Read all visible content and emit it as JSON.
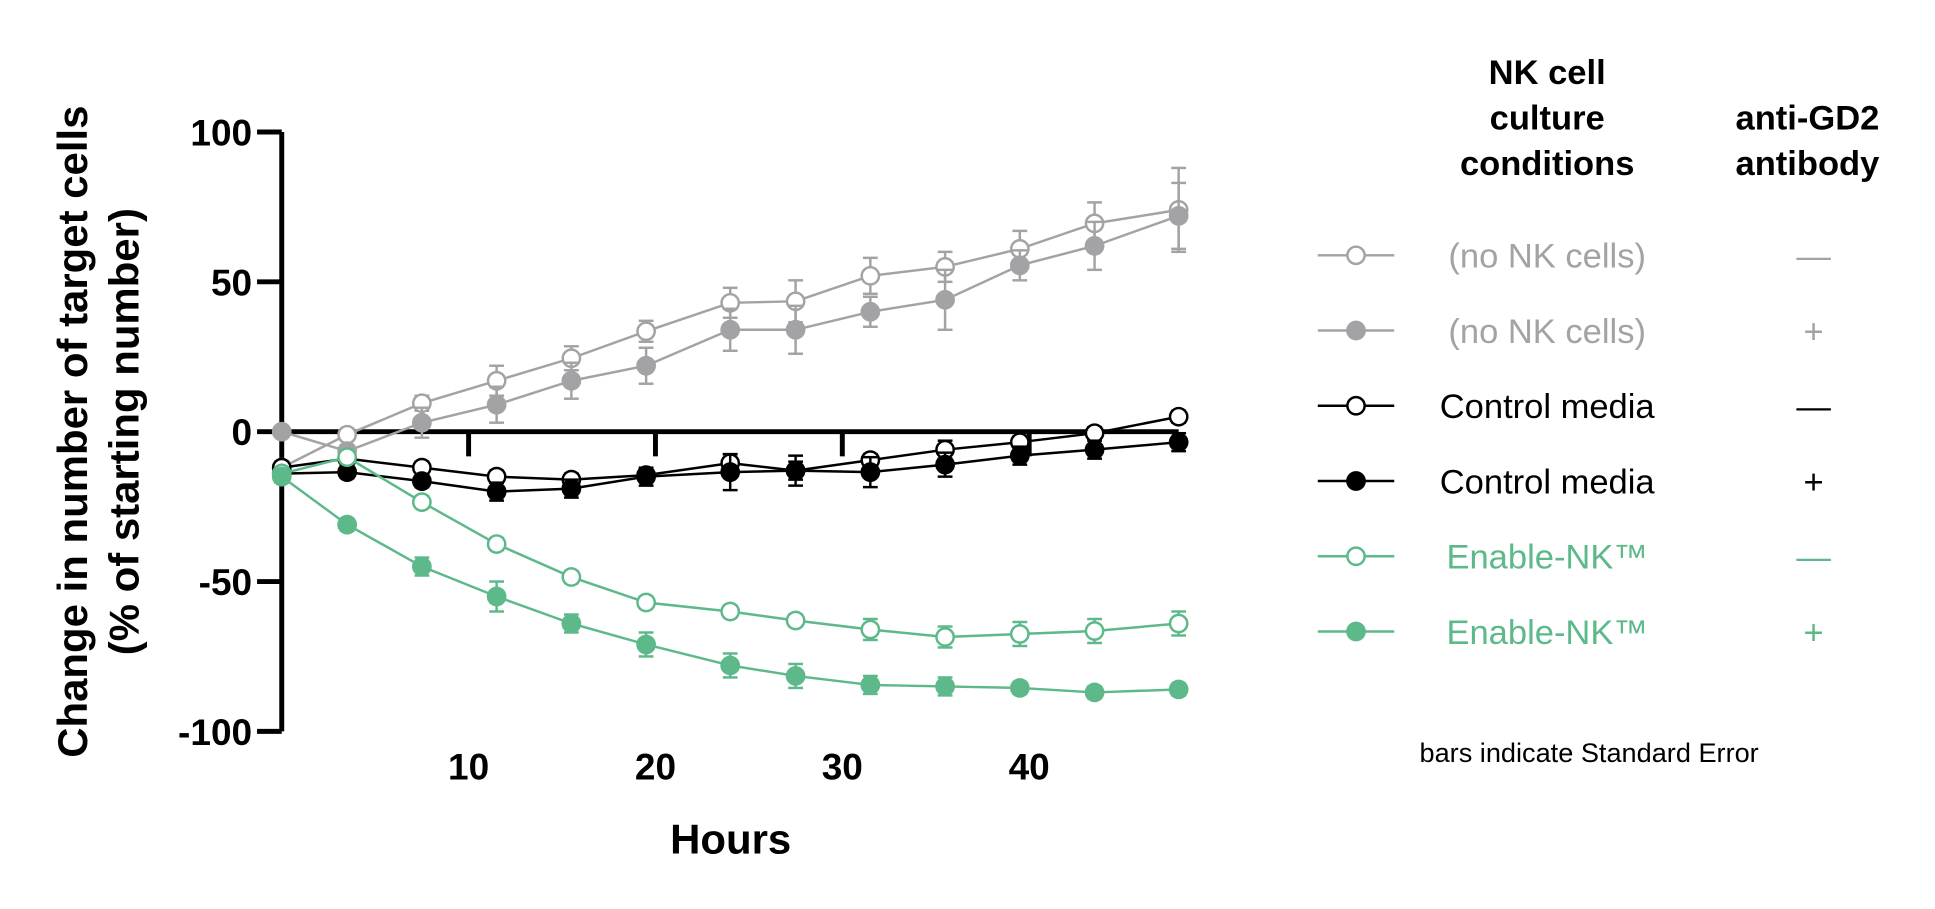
{
  "chart_data": {
    "type": "line",
    "title": "",
    "xlabel": "Hours",
    "ylabel_lines": [
      "Change in number of target cells",
      "(% of starting number)"
    ],
    "xlim": [
      0,
      48
    ],
    "ylim": [
      -100,
      100
    ],
    "xticks": [
      10,
      20,
      30,
      40
    ],
    "yticks": [
      100,
      50,
      0,
      -50,
      -100
    ],
    "grid": false,
    "legend_position": "right",
    "legend_headers": [
      "NK cell\nculture\nconditions",
      "anti-GD2\nantibody"
    ],
    "legend_header_lines": {
      "conditions": [
        "NK cell",
        "culture",
        "conditions"
      ],
      "antibody": [
        "anti-GD2",
        "antibody"
      ]
    },
    "note": "bars indicate Standard Error",
    "x": [
      0,
      3.5,
      7.5,
      11.5,
      15.5,
      19.5,
      24,
      27.5,
      31.5,
      35.5,
      39.5,
      43.5,
      48
    ],
    "series": [
      {
        "name": "(no NK cells)",
        "antibody": "—",
        "color": "#A3A3A6",
        "marker": "open",
        "values": [
          -12,
          -1,
          9.5,
          17,
          24.5,
          33.5,
          43,
          43.5,
          52,
          55,
          61,
          69.5,
          74
        ],
        "error": [
          2,
          2,
          2.5,
          5,
          4,
          3.5,
          5,
          7,
          6,
          5,
          6,
          7,
          14
        ]
      },
      {
        "name": "(no NK cells)",
        "antibody": "+",
        "color": "#A3A3A6",
        "marker": "filled",
        "values": [
          0,
          -6.5,
          3,
          9,
          17,
          22,
          34,
          34,
          40,
          44,
          55.5,
          62,
          72
        ],
        "error": [
          1,
          2,
          5,
          6,
          6,
          6,
          7,
          8,
          5,
          10,
          5,
          8,
          11
        ]
      },
      {
        "name": "Control media",
        "antibody": "—",
        "color": "#000000",
        "marker": "open",
        "values": [
          -12,
          -9,
          -12,
          -15,
          -16,
          -14.5,
          -10.5,
          -13,
          -9.5,
          -6,
          -3.5,
          -0.5,
          5
        ],
        "error": [
          2,
          2,
          2,
          2,
          2,
          2,
          3,
          3,
          2,
          3,
          2,
          2,
          2
        ]
      },
      {
        "name": "Control media",
        "antibody": "+",
        "color": "#000000",
        "marker": "filled",
        "values": [
          -14,
          -13.5,
          -16.5,
          -20,
          -19,
          -15,
          -13.5,
          -13,
          -13.5,
          -11,
          -8,
          -6,
          -3.5
        ],
        "error": [
          2,
          2,
          2,
          3,
          3,
          3,
          6,
          5,
          5,
          4,
          3,
          3,
          3
        ]
      },
      {
        "name": "Enable-NK™",
        "antibody": "—",
        "color": "#5DB88A",
        "marker": "open",
        "values": [
          -14,
          -8.5,
          -23.5,
          -37.5,
          -48.5,
          -57,
          -60,
          -63,
          -66,
          -68.5,
          -67.5,
          -66.5,
          -64
        ],
        "error": [
          2,
          2,
          2,
          2,
          2,
          2,
          2,
          2,
          3.5,
          3.5,
          4,
          4,
          4
        ]
      },
      {
        "name": "Enable-NK™",
        "antibody": "+",
        "color": "#5DB88A",
        "marker": "filled",
        "values": [
          -15,
          -31,
          -45,
          -55,
          -64,
          -71,
          -78,
          -81.5,
          -84.5,
          -85,
          -85.5,
          -87,
          -86
        ],
        "error": [
          2,
          2,
          3,
          5,
          3,
          4,
          4,
          4,
          3,
          3,
          2,
          2,
          2
        ]
      }
    ]
  }
}
